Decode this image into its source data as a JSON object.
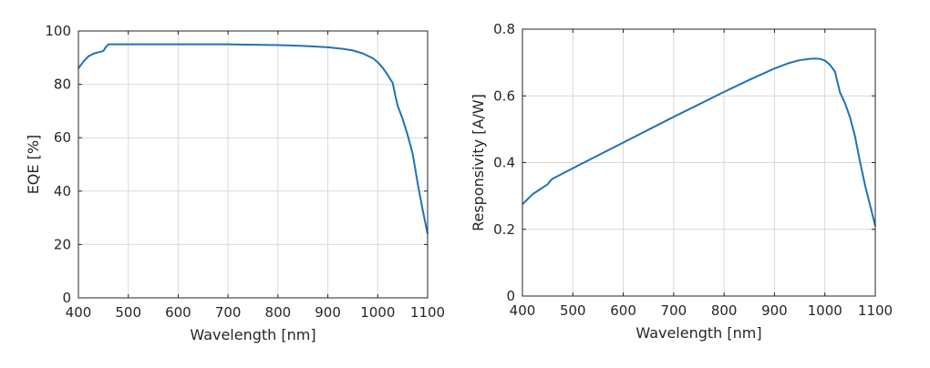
{
  "chart_data": [
    {
      "type": "line",
      "xlabel": "Wavelength [nm]",
      "ylabel": "EQE [%]",
      "xlim": [
        400,
        1100
      ],
      "ylim": [
        0,
        100
      ],
      "xticks": [
        400,
        500,
        600,
        700,
        800,
        900,
        1000,
        1100
      ],
      "yticks": [
        0,
        20,
        40,
        60,
        80,
        100
      ],
      "grid": true,
      "colors": {
        "line": "#1f72b8",
        "grid": "#d9d9d9",
        "axis": "#262626"
      },
      "series": [
        {
          "x": [
            400,
            410,
            420,
            430,
            440,
            450,
            455,
            460,
            500,
            600,
            700,
            800,
            850,
            900,
            930,
            950,
            970,
            990,
            1000,
            1010,
            1020,
            1030,
            1035,
            1040,
            1050,
            1060,
            1070,
            1080,
            1090,
            1100
          ],
          "y": [
            86,
            88.5,
            90.5,
            91.5,
            92,
            92.5,
            94,
            95,
            95,
            95,
            95,
            94.7,
            94.4,
            93.9,
            93.3,
            92.7,
            91.6,
            89.8,
            88.3,
            86.2,
            83.5,
            80.5,
            76,
            72,
            67,
            61,
            54,
            43,
            33,
            24
          ]
        }
      ]
    },
    {
      "type": "line",
      "xlabel": "Wavelength [nm]",
      "ylabel": "Responsivity [A/W]",
      "xlim": [
        400,
        1100
      ],
      "ylim": [
        0,
        0.8
      ],
      "xticks": [
        400,
        500,
        600,
        700,
        800,
        900,
        1000,
        1100
      ],
      "yticks": [
        0,
        0.2,
        0.4,
        0.6,
        0.8
      ],
      "grid": true,
      "colors": {
        "line": "#1f72b8",
        "grid": "#d9d9d9",
        "axis": "#262626"
      },
      "series": [
        {
          "x": [
            400,
            410,
            420,
            430,
            440,
            450,
            455,
            460,
            500,
            600,
            700,
            800,
            850,
            900,
            930,
            950,
            970,
            980,
            990,
            1000,
            1010,
            1020,
            1030,
            1040,
            1050,
            1060,
            1070,
            1080,
            1090,
            1100
          ],
          "y": [
            0.275,
            0.29,
            0.305,
            0.315,
            0.325,
            0.335,
            0.345,
            0.352,
            0.383,
            0.46,
            0.537,
            0.612,
            0.648,
            0.682,
            0.699,
            0.707,
            0.711,
            0.712,
            0.711,
            0.706,
            0.693,
            0.673,
            0.61,
            0.578,
            0.535,
            0.477,
            0.4,
            0.33,
            0.27,
            0.21
          ]
        }
      ]
    }
  ]
}
